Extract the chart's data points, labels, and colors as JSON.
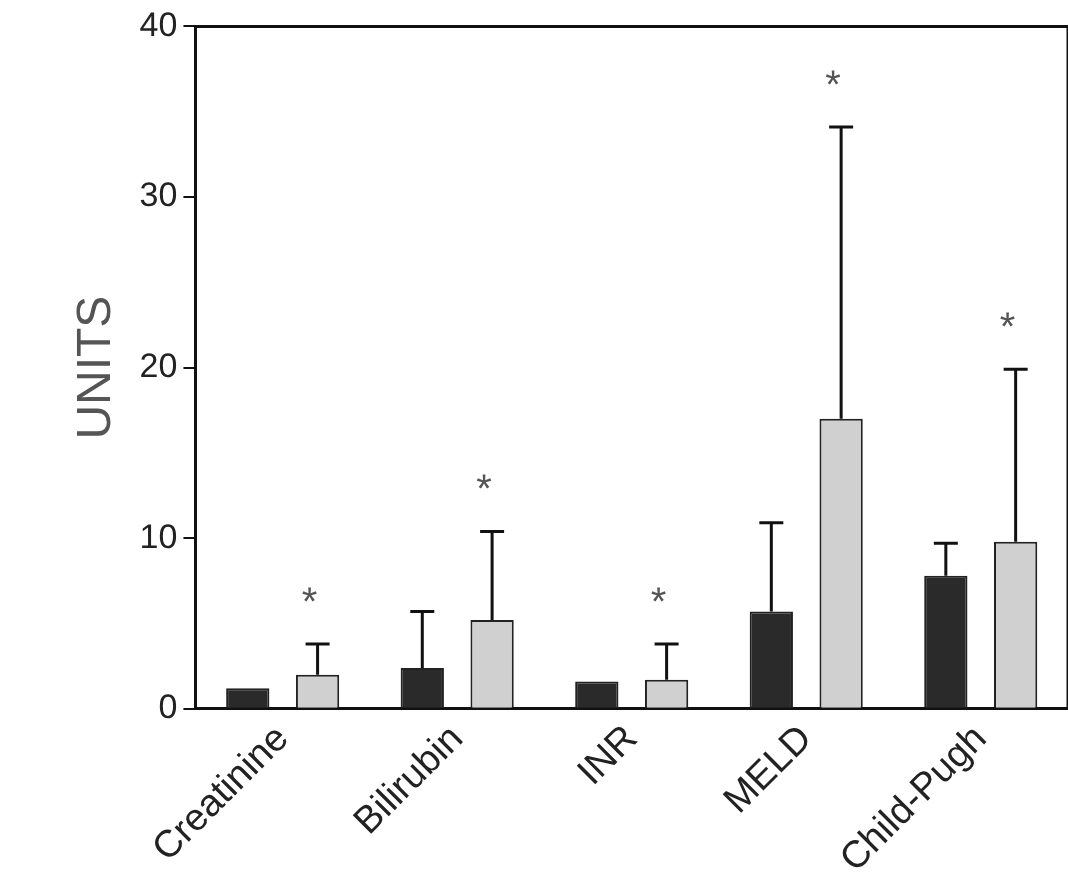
{
  "chart_data": {
    "type": "bar",
    "ylabel": "UNITS",
    "categories": [
      "Creatinine",
      "Bilirubin",
      "INR",
      "MELD",
      "Child-Pugh"
    ],
    "series": [
      {
        "color": "#2a2a2a",
        "values": [
          1.2,
          2.4,
          1.6,
          5.7,
          7.8
        ],
        "errors": [
          null,
          [
            2.4,
            5.7
          ],
          null,
          [
            5.7,
            10.9
          ],
          [
            7.8,
            9.7
          ]
        ]
      },
      {
        "color": "#d0d0d0",
        "values": [
          2.0,
          5.2,
          1.7,
          17.0,
          9.8
        ],
        "errors": [
          [
            2.0,
            3.8
          ],
          [
            5.2,
            10.4
          ],
          [
            1.7,
            3.8
          ],
          [
            17.0,
            34.1
          ],
          [
            9.8,
            19.9
          ]
        ]
      }
    ],
    "ylim": [
      0,
      40
    ],
    "yticks": [
      0,
      10,
      20,
      30,
      40
    ],
    "grid": false,
    "legend": false,
    "annotations": [
      "*",
      "*",
      "*",
      "*",
      "*"
    ]
  }
}
